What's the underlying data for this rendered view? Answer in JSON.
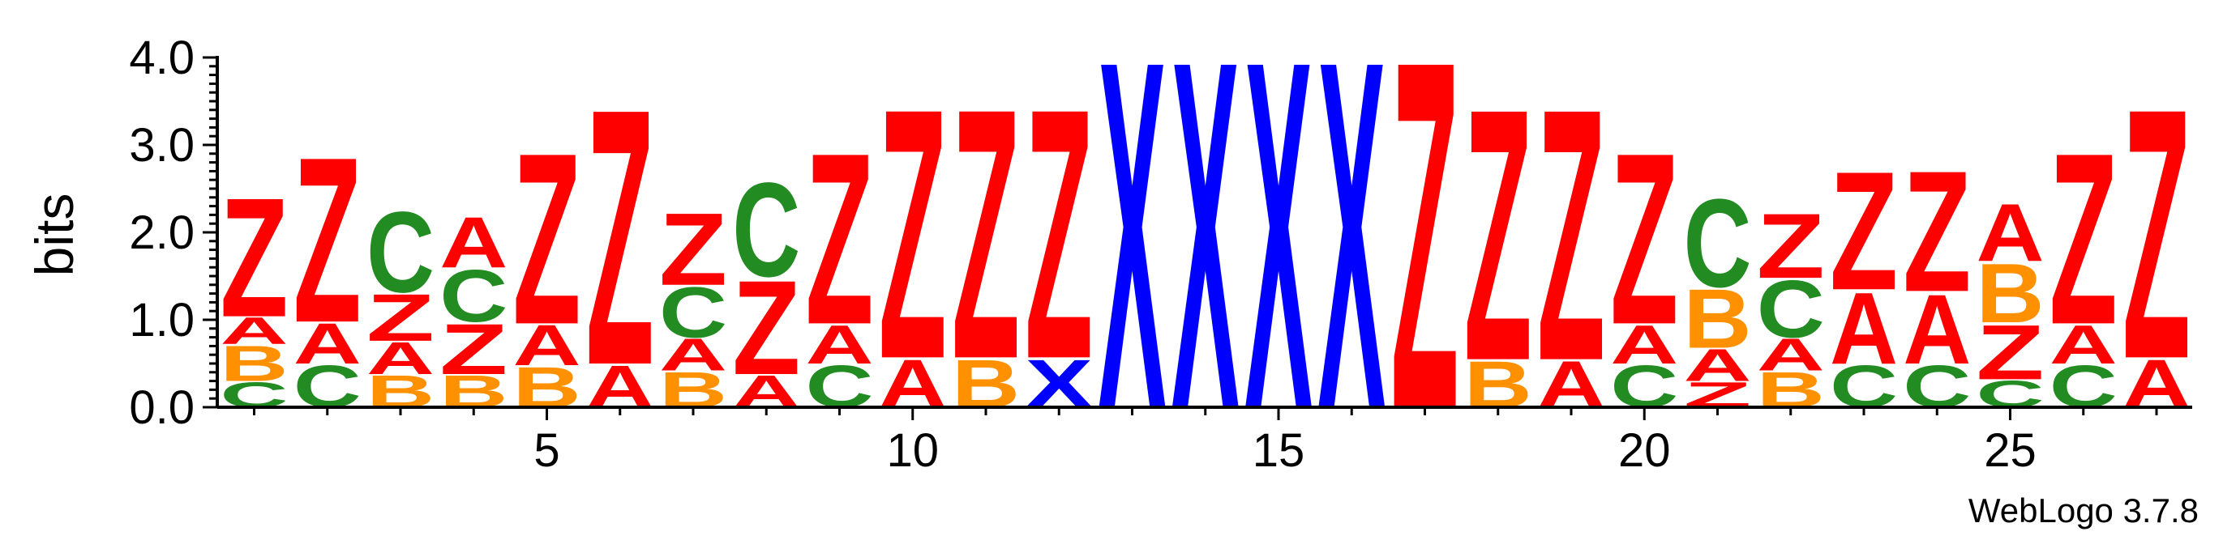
{
  "chart_data": {
    "type": "sequence-logo",
    "title": "",
    "xlabel": "",
    "ylabel": "bits",
    "ylim": [
      0,
      4.0
    ],
    "yticks": [
      "0.0",
      "1.0",
      "2.0",
      "3.0",
      "4.0"
    ],
    "xticks": [
      "5",
      "10",
      "15",
      "20",
      "25"
    ],
    "xtick_positions": [
      5,
      10,
      15,
      20,
      25
    ],
    "footer": "WebLogo 3.7.8",
    "colors": {
      "A": "#ff0000",
      "Z": "#ff0000",
      "B": "#ff9000",
      "C": "#228b22",
      "X": "#0000ff"
    },
    "positions": [
      {
        "pos": 1,
        "stack": [
          [
            "C",
            0.3
          ],
          [
            "B",
            0.42
          ],
          [
            "A",
            0.32
          ],
          [
            "Z",
            1.42
          ]
        ]
      },
      {
        "pos": 2,
        "stack": [
          [
            "C",
            0.5
          ],
          [
            "A",
            0.48
          ],
          [
            "Z",
            1.97
          ]
        ]
      },
      {
        "pos": 3,
        "stack": [
          [
            "B",
            0.38
          ],
          [
            "A",
            0.38
          ],
          [
            "Z",
            0.56
          ],
          [
            "C",
            0.96
          ]
        ]
      },
      {
        "pos": 4,
        "stack": [
          [
            "B",
            0.38
          ],
          [
            "Z",
            0.6
          ],
          [
            "C",
            0.62
          ],
          [
            "A",
            0.6
          ]
        ]
      },
      {
        "pos": 5,
        "stack": [
          [
            "B",
            0.48
          ],
          [
            "A",
            0.48
          ],
          [
            "Z",
            2.04
          ]
        ]
      },
      {
        "pos": 6,
        "stack": [
          [
            "A",
            0.5
          ],
          [
            "Z",
            3.05
          ]
        ]
      },
      {
        "pos": 7,
        "stack": [
          [
            "B",
            0.42
          ],
          [
            "A",
            0.38
          ],
          [
            "C",
            0.6
          ],
          [
            "Z",
            0.86
          ]
        ]
      },
      {
        "pos": 8,
        "stack": [
          [
            "A",
            0.38
          ],
          [
            "Z",
            1.12
          ],
          [
            "C",
            1.12
          ]
        ]
      },
      {
        "pos": 9,
        "stack": [
          [
            "C",
            0.5
          ],
          [
            "A",
            0.46
          ],
          [
            "Z",
            2.04
          ]
        ]
      },
      {
        "pos": 10,
        "stack": [
          [
            "A",
            0.57
          ],
          [
            "Z",
            2.98
          ]
        ]
      },
      {
        "pos": 11,
        "stack": [
          [
            "B",
            0.57
          ],
          [
            "Z",
            2.98
          ]
        ]
      },
      {
        "pos": 12,
        "stack": [
          [
            "X",
            0.57
          ],
          [
            "Z",
            2.98
          ]
        ]
      },
      {
        "pos": 13,
        "stack": [
          [
            "X",
            4.15
          ]
        ]
      },
      {
        "pos": 14,
        "stack": [
          [
            "X",
            4.15
          ]
        ]
      },
      {
        "pos": 15,
        "stack": [
          [
            "X",
            4.15
          ]
        ]
      },
      {
        "pos": 16,
        "stack": [
          [
            "X",
            4.15
          ]
        ]
      },
      {
        "pos": 17,
        "stack": [
          [
            "Z",
            4.15
          ]
        ]
      },
      {
        "pos": 18,
        "stack": [
          [
            "B",
            0.55
          ],
          [
            "Z",
            3.0
          ]
        ]
      },
      {
        "pos": 19,
        "stack": [
          [
            "A",
            0.55
          ],
          [
            "Z",
            3.0
          ]
        ]
      },
      {
        "pos": 20,
        "stack": [
          [
            "C",
            0.5
          ],
          [
            "A",
            0.46
          ],
          [
            "Z",
            2.04
          ]
        ]
      },
      {
        "pos": 21,
        "stack": [
          [
            "Z",
            0.3
          ],
          [
            "A",
            0.38
          ],
          [
            "B",
            0.7
          ],
          [
            "C",
            1.05
          ]
        ]
      },
      {
        "pos": 22,
        "stack": [
          [
            "B",
            0.42
          ],
          [
            "A",
            0.38
          ],
          [
            "C",
            0.68
          ],
          [
            "Z",
            0.77
          ]
        ]
      },
      {
        "pos": 23,
        "stack": [
          [
            "C",
            0.5
          ],
          [
            "A",
            0.85
          ],
          [
            "Z",
            1.41
          ]
        ]
      },
      {
        "pos": 24,
        "stack": [
          [
            "C",
            0.5
          ],
          [
            "A",
            0.83
          ],
          [
            "Z",
            1.44
          ]
        ]
      },
      {
        "pos": 25,
        "stack": [
          [
            "C",
            0.32
          ],
          [
            "Z",
            0.65
          ],
          [
            "B",
            0.7
          ],
          [
            "A",
            0.68
          ]
        ]
      },
      {
        "pos": 26,
        "stack": [
          [
            "C",
            0.5
          ],
          [
            "A",
            0.46
          ],
          [
            "Z",
            2.04
          ]
        ]
      },
      {
        "pos": 27,
        "stack": [
          [
            "A",
            0.57
          ],
          [
            "Z",
            2.98
          ]
        ]
      }
    ]
  }
}
